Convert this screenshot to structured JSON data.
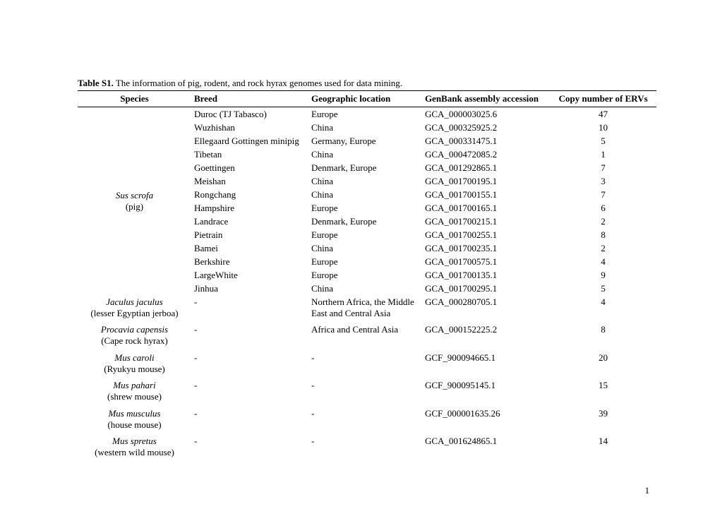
{
  "caption": {
    "label": "Table S1.",
    "text": " The information of pig, rodent, and rock hyrax genomes used for data mining."
  },
  "columns": [
    "Species",
    "Breed",
    "Geographic location",
    "GenBank assembly accession",
    "Copy number of ERVs"
  ],
  "pigSpecies": {
    "scientific": "Sus scrofa",
    "common": "(pig)"
  },
  "pigRows": [
    {
      "breed": "Duroc (TJ Tabasco)",
      "location": "Europe",
      "genbank": "GCA_000003025.6",
      "copy": "47"
    },
    {
      "breed": "Wuzhishan",
      "location": "China",
      "genbank": "GCA_000325925.2",
      "copy": "10"
    },
    {
      "breed": "Ellegaard Gottingen minipig",
      "location": "Germany, Europe",
      "genbank": "GCA_000331475.1",
      "copy": "5"
    },
    {
      "breed": "Tibetan",
      "location": "China",
      "genbank": "GCA_000472085.2",
      "copy": "1"
    },
    {
      "breed": "Goettingen",
      "location": "Denmark, Europe",
      "genbank": "GCA_001292865.1",
      "copy": "7"
    },
    {
      "breed": "Meishan",
      "location": "China",
      "genbank": "GCA_001700195.1",
      "copy": "3"
    },
    {
      "breed": "Rongchang",
      "location": "China",
      "genbank": "GCA_001700155.1",
      "copy": "7"
    },
    {
      "breed": "Hampshire",
      "location": "Europe",
      "genbank": "GCA_001700165.1",
      "copy": "6"
    },
    {
      "breed": "Landrace",
      "location": "Denmark, Europe",
      "genbank": "GCA_001700215.1",
      "copy": "2"
    },
    {
      "breed": "Pietrain",
      "location": "Europe",
      "genbank": "GCA_001700255.1",
      "copy": "8"
    },
    {
      "breed": "Bamei",
      "location": "China",
      "genbank": "GCA_001700235.1",
      "copy": "2"
    },
    {
      "breed": "Berkshire",
      "location": "Europe",
      "genbank": "GCA_001700575.1",
      "copy": "4"
    },
    {
      "breed": "LargeWhite",
      "location": "Europe",
      "genbank": "GCA_001700135.1",
      "copy": "9"
    },
    {
      "breed": "Jinhua",
      "location": "China",
      "genbank": "GCA_001700295.1",
      "copy": "5"
    }
  ],
  "otherRows": [
    {
      "scientific": "Jaculus jaculus",
      "common": "(lesser Egyptian jerboa)",
      "breed": "-",
      "location": "Northern Africa, the Middle East and Central Asia",
      "genbank": "GCA_000280705.1",
      "copy": "4"
    },
    {
      "scientific": "Procavia capensis",
      "common": "(Cape rock hyrax)",
      "breed": "-",
      "location": "Africa and Central Asia",
      "genbank": "GCA_000152225.2",
      "copy": "8"
    },
    {
      "scientific": "Mus caroli",
      "common": "(Ryukyu mouse)",
      "breed": "-",
      "location": "-",
      "genbank": "GCF_900094665.1",
      "copy": "20"
    },
    {
      "scientific": "Mus pahari",
      "common": "(shrew mouse)",
      "breed": "-",
      "location": "-",
      "genbank": "GCF_900095145.1",
      "copy": "15"
    },
    {
      "scientific": "Mus musculus",
      "common": "(house mouse)",
      "breed": "-",
      "location": "-",
      "genbank": "GCF_000001635.26",
      "copy": "39"
    },
    {
      "scientific": "Mus spretus",
      "common": "(western wild mouse)",
      "breed": "-",
      "location": "-",
      "genbank": "GCA_001624865.1",
      "copy": "14"
    }
  ],
  "pageNumber": "1"
}
